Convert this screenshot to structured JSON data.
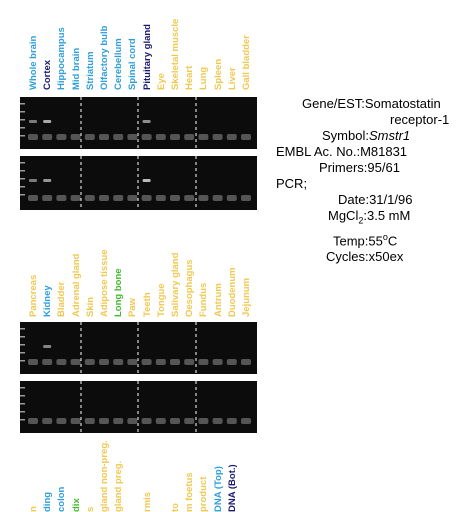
{
  "panels": [
    {
      "label_baseline": 90,
      "labels": [
        {
          "text": "Whole brain",
          "color": "#2f9fd8"
        },
        {
          "text": "Cortex",
          "color": "#1a1a70"
        },
        {
          "text": "Hippocampus",
          "color": "#2f9fd8"
        },
        {
          "text": "Mid brain",
          "color": "#2f9fd8"
        },
        {
          "text": "Striatum",
          "color": "#2f9fd8"
        },
        {
          "text": "Olfactory bulb",
          "color": "#2f9fd8"
        },
        {
          "text": "Cerebellum",
          "color": "#2f9fd8"
        },
        {
          "text": "Spinal cord",
          "color": "#2f9fd8"
        },
        {
          "text": "Pituitary gland",
          "color": "#1a1a70"
        },
        {
          "text": "Eye",
          "color": "#f0c850"
        },
        {
          "text": "Skeletal muscle",
          "color": "#f0c850"
        },
        {
          "text": "Heart",
          "color": "#f0c850"
        },
        {
          "text": "Lung",
          "color": "#f0c850"
        },
        {
          "text": "Spleen",
          "color": "#f0c850"
        },
        {
          "text": "Liver",
          "color": "#f0c850"
        },
        {
          "text": "Gall bladder",
          "color": "#f0c850"
        }
      ]
    },
    {
      "label_baseline": 317,
      "labels": [
        {
          "text": "Pancreas",
          "color": "#f0c850"
        },
        {
          "text": "Kidney",
          "color": "#2f9fd8"
        },
        {
          "text": "Bladder",
          "color": "#f0c850"
        },
        {
          "text": "Adrenal gland",
          "color": "#f0c850"
        },
        {
          "text": "Skin",
          "color": "#f0c850"
        },
        {
          "text": "Adipose tissue",
          "color": "#f0c850"
        },
        {
          "text": "Long bone",
          "color": "#44bb2e"
        },
        {
          "text": "Paw",
          "color": "#f0c850"
        },
        {
          "text": "Teeth",
          "color": "#f0c850"
        },
        {
          "text": "Tongue",
          "color": "#f0c850"
        },
        {
          "text": "Salivary gland",
          "color": "#f0c850"
        },
        {
          "text": "Oesophagus",
          "color": "#f0c850"
        },
        {
          "text": "Fundus",
          "color": "#f0c850"
        },
        {
          "text": "Antrum",
          "color": "#f0c850"
        },
        {
          "text": "Duodenum",
          "color": "#f0c850"
        },
        {
          "text": "Jejunum",
          "color": "#f0c850"
        }
      ]
    },
    {
      "label_baseline": 512,
      "labels": [
        {
          "text": "n",
          "color": "#f0c850"
        },
        {
          "text": "ding",
          "color": "#2f9fd8"
        },
        {
          "text": "colon",
          "color": "#2f9fd8"
        },
        {
          "text": "dix",
          "color": "#44bb2e"
        },
        {
          "text": "s",
          "color": "#f0c850"
        },
        {
          "text": "gland non-preg.",
          "color": "#f0c850"
        },
        {
          "text": "gland preg.",
          "color": "#f0c850"
        },
        {
          "text": "",
          "color": "#f0c850"
        },
        {
          "text": "rmis",
          "color": "#f0c850"
        },
        {
          "text": "",
          "color": "#f0c850"
        },
        {
          "text": "to",
          "color": "#f0c850"
        },
        {
          "text": "m foetus",
          "color": "#f0c850"
        },
        {
          "text": "product",
          "color": "#f0c850"
        },
        {
          "text": "DNA (Top)",
          "color": "#2f9fd8"
        },
        {
          "text": "DNA (Bot.)",
          "color": "#1a1a70"
        }
      ]
    }
  ],
  "gels": [
    {
      "bands": [
        {
          "lane": 0,
          "intensity": 0.35
        },
        {
          "lane": 1,
          "intensity": 0.6
        },
        {
          "lane": 8,
          "intensity": 0.45
        }
      ]
    },
    {
      "bands": [
        {
          "lane": 0,
          "intensity": 0.35
        },
        {
          "lane": 1,
          "intensity": 0.5
        },
        {
          "lane": 8,
          "intensity": 0.7
        }
      ]
    },
    {
      "bands": [
        {
          "lane": 1,
          "intensity": 0.4
        }
      ]
    },
    {
      "bands": []
    }
  ],
  "info": {
    "gene_key": "Gene/EST:",
    "gene_value_line1": "Somatostatin",
    "gene_value_line2": "receptor-1",
    "symbol_key": "Symbol:",
    "symbol_value": "Smstr1",
    "embl_key": "EMBL Ac. No.:",
    "embl_value": "M81831",
    "primers_key": "Primers:",
    "primers_value": "95/61",
    "pcr_label": "PCR;",
    "date_key": "Date:",
    "date_value": "31/1/96",
    "mgcl2_key_main": "MgCl",
    "mgcl2_key_sub": "2",
    "mgcl2_key_colon": ":",
    "mgcl2_value": "3.5 mM",
    "temp_key": "Temp:",
    "temp_value_main": "55",
    "temp_value_sup": "o",
    "temp_value_unit": "C",
    "cycles_key": "Cycles:",
    "cycles_value": "x50ex"
  }
}
